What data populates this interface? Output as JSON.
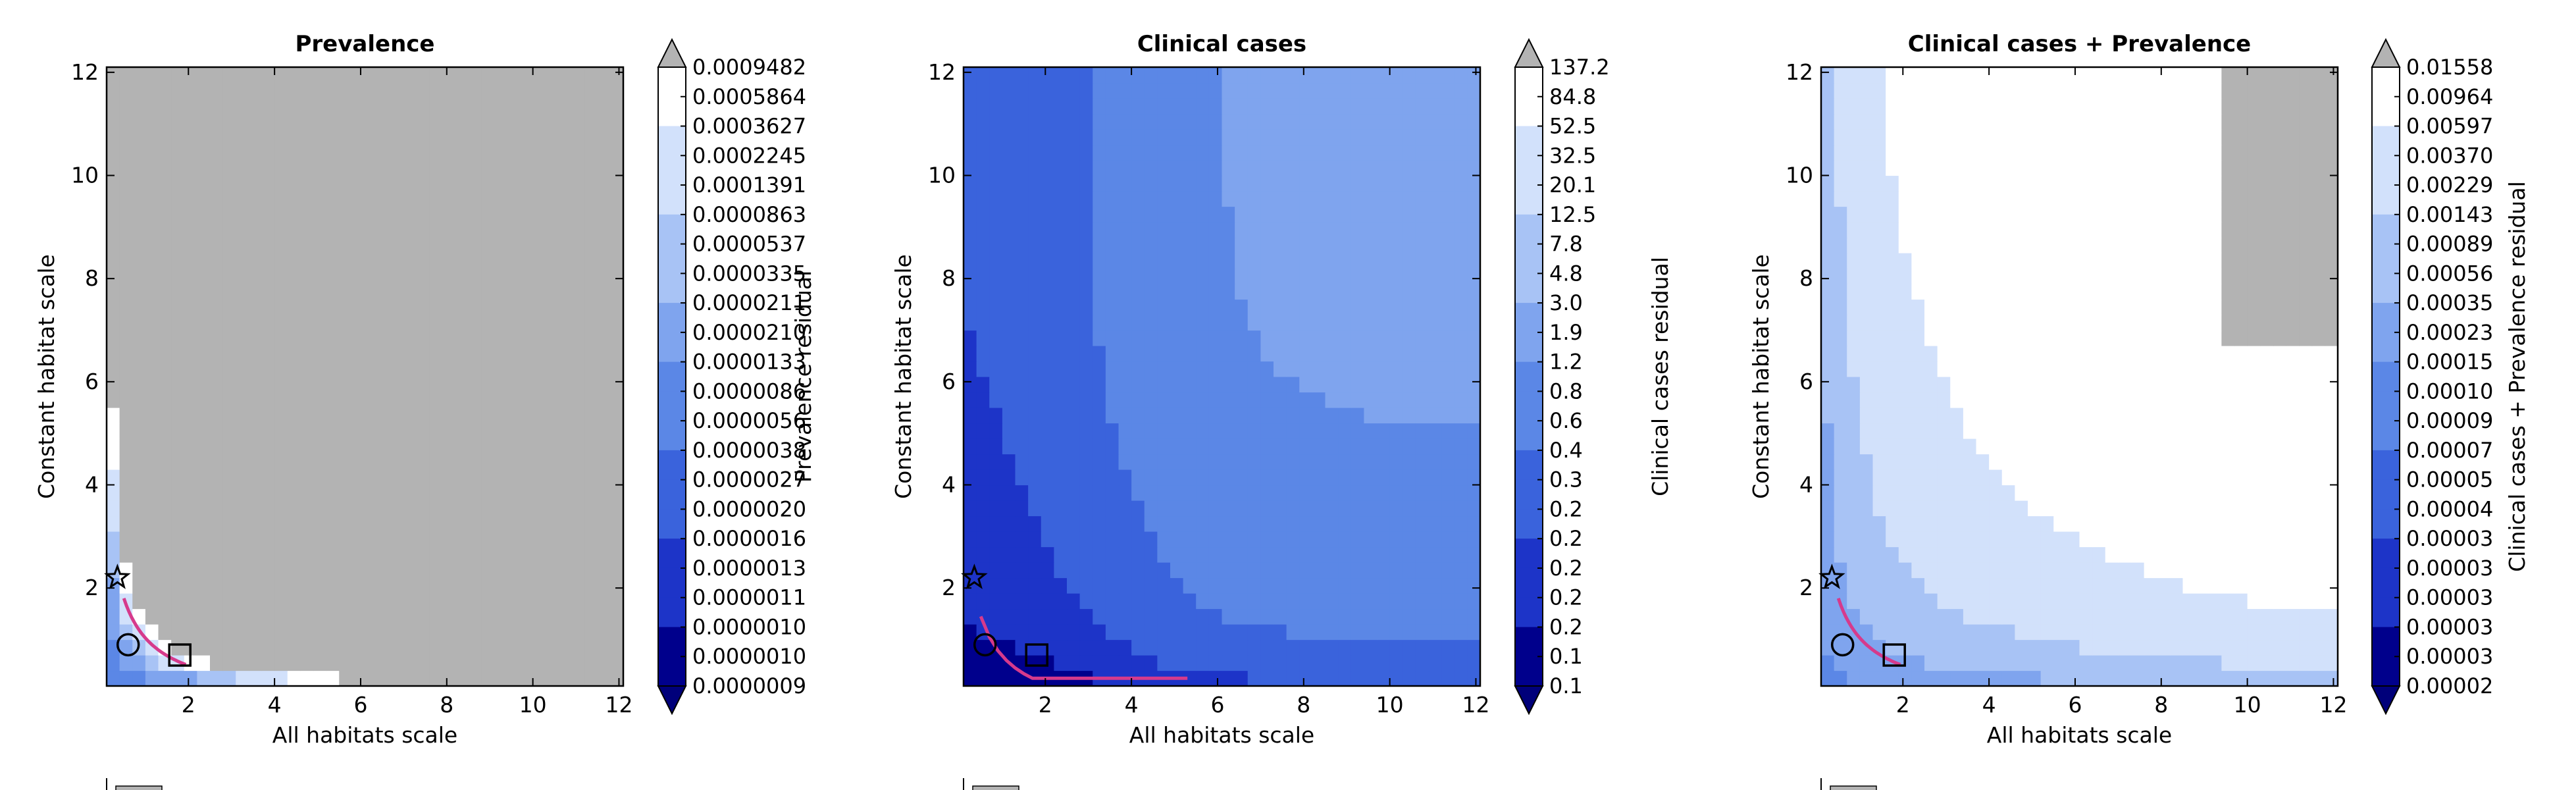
{
  "colors": {
    "over": "#b3b3b3",
    "under": "#00007a",
    "ramp": [
      "#00008c",
      "#1d34c8",
      "#3a63dc",
      "#5b87e6",
      "#7fa4ee",
      "#a8c3f5",
      "#d2e1fb",
      "#ffffff"
    ],
    "contour": "#d63a8c",
    "axis": "#000000"
  },
  "chart_data": [
    {
      "type": "heatmap",
      "title": "Prevalence",
      "xlabel": "All habitats scale",
      "ylabel": "Constant habitat scale",
      "colorbar_label": "Prevalence residual",
      "xlim": [
        0.1,
        12.1
      ],
      "ylim": [
        0.1,
        12.1
      ],
      "xticks": [
        "2",
        "4",
        "6",
        "8",
        "10",
        "12"
      ],
      "yticks": [
        "2",
        "4",
        "6",
        "8",
        "10",
        "12"
      ],
      "colorbar_ticks": [
        "0.0009482",
        "0.0005864",
        "0.0003627",
        "0.0002245",
        "0.0001391",
        "0.0000863",
        "0.0000537",
        "0.0000335",
        "0.0000211",
        "0.0000210",
        "0.0000133",
        "0.0000086",
        "0.0000056",
        "0.0000038",
        "0.0000027",
        "0.0000020",
        "0.0000016",
        "0.0000013",
        "0.0000011",
        "0.0000010",
        "0.0000010",
        "0.0000009"
      ],
      "field_model": "prevalence",
      "markers": [
        {
          "shape": "star",
          "x": 0.35,
          "y": 2.2
        },
        {
          "shape": "circle",
          "x": 0.6,
          "y": 0.9
        },
        {
          "shape": "square",
          "x": 1.8,
          "y": 0.7
        }
      ],
      "legend_partial": true
    },
    {
      "type": "heatmap",
      "title": "Clinical cases",
      "xlabel": "All habitats scale",
      "ylabel": "Constant habitat scale",
      "colorbar_label": "Clinical cases residual",
      "xlim": [
        0.1,
        12.1
      ],
      "ylim": [
        0.1,
        12.1
      ],
      "xticks": [
        "2",
        "4",
        "6",
        "8",
        "10",
        "12"
      ],
      "yticks": [
        "2",
        "4",
        "6",
        "8",
        "10",
        "12"
      ],
      "colorbar_ticks": [
        "137.2",
        "84.8",
        "52.5",
        "32.5",
        "20.1",
        "12.5",
        "7.8",
        "4.8",
        "3.0",
        "1.9",
        "1.2",
        "0.8",
        "0.6",
        "0.4",
        "0.3",
        "0.2",
        "0.2",
        "0.2",
        "0.2",
        "0.2",
        "0.1",
        "0.1"
      ],
      "field_model": "clinical",
      "markers": [
        {
          "shape": "star",
          "x": 0.35,
          "y": 2.2
        },
        {
          "shape": "circle",
          "x": 0.6,
          "y": 0.9
        },
        {
          "shape": "square",
          "x": 1.8,
          "y": 0.7
        }
      ],
      "legend_partial": true
    },
    {
      "type": "heatmap",
      "title": "Clinical cases + Prevalence",
      "xlabel": "All habitats scale",
      "ylabel": "Constant habitat scale",
      "colorbar_label": "Clinical cases + Prevalence residual",
      "xlim": [
        0.1,
        12.1
      ],
      "ylim": [
        0.1,
        12.1
      ],
      "xticks": [
        "2",
        "4",
        "6",
        "8",
        "10",
        "12"
      ],
      "yticks": [
        "2",
        "4",
        "6",
        "8",
        "10",
        "12"
      ],
      "colorbar_ticks": [
        "0.01558",
        "0.00964",
        "0.00597",
        "0.00370",
        "0.00229",
        "0.00143",
        "0.00089",
        "0.00056",
        "0.00035",
        "0.00023",
        "0.00015",
        "0.00010",
        "0.00009",
        "0.00007",
        "0.00005",
        "0.00004",
        "0.00003",
        "0.00003",
        "0.00003",
        "0.00003",
        "0.00003",
        "0.00002"
      ],
      "field_model": "combined",
      "markers": [
        {
          "shape": "star",
          "x": 0.35,
          "y": 2.2
        },
        {
          "shape": "circle",
          "x": 0.6,
          "y": 0.9
        },
        {
          "shape": "square",
          "x": 1.8,
          "y": 0.7
        }
      ],
      "legend_partial": true
    }
  ]
}
